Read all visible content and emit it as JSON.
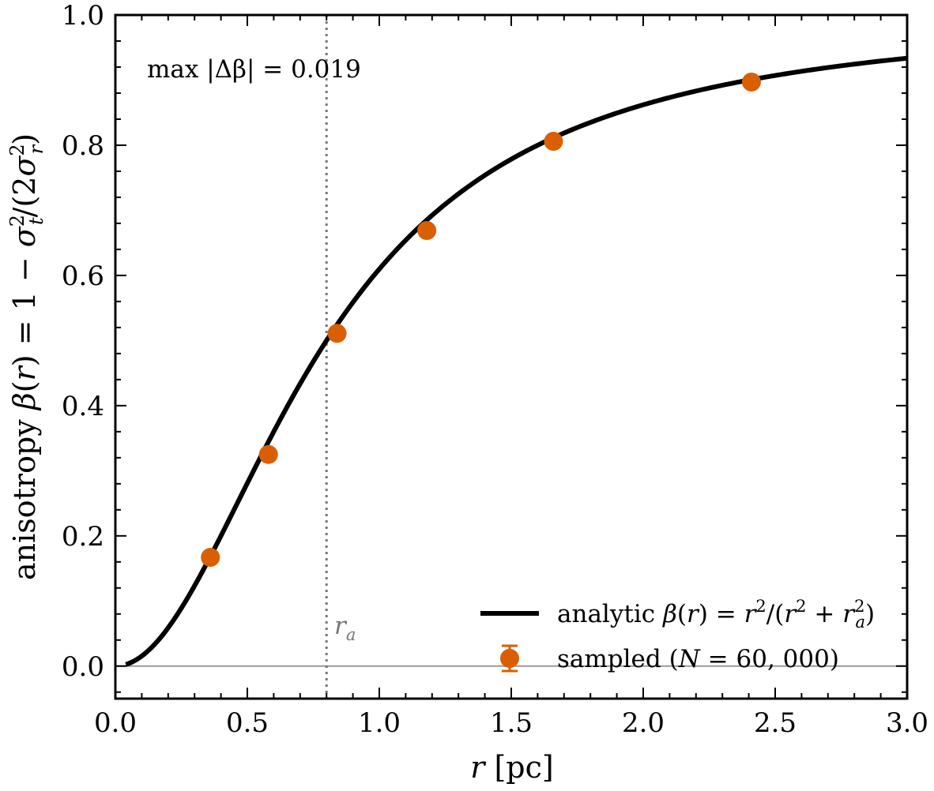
{
  "chart_data": {
    "type": "line",
    "xlabel": "r [pc]",
    "ylabel": "anisotropy β(r) = 1 − σ_t²/(2σ_r²)",
    "xlim": [
      0.0,
      3.0
    ],
    "ylim": [
      -0.05,
      1.0
    ],
    "xticks": [
      "0.0",
      "0.5",
      "1.0",
      "1.5",
      "2.0",
      "2.5",
      "3.0"
    ],
    "yticks": [
      "0.0",
      "0.2",
      "0.4",
      "0.6",
      "0.8",
      "1.0"
    ],
    "grid": false,
    "legend_position": "bottom-right",
    "annotation": "max |Δβ| = 0.019",
    "vline": {
      "x": 0.8,
      "label": "r_a"
    },
    "hline": {
      "y": 0.0
    },
    "series": [
      {
        "name": "analytic β(r) = r²/(r² + r_a²)",
        "kind": "line",
        "color": "#000000",
        "formula": "x^2/(x^2+0.8^2)",
        "r_a": 0.8,
        "x_range": [
          0.04,
          3.0
        ]
      },
      {
        "name": "sampled (N = 60,000)",
        "kind": "errorbar",
        "color": "#d95f02",
        "x": [
          0.36,
          0.58,
          0.84,
          1.18,
          1.66,
          2.41
        ],
        "y": [
          0.167,
          0.325,
          0.511,
          0.669,
          0.806,
          0.897
        ],
        "yerr": [
          0.006,
          0.006,
          0.006,
          0.006,
          0.006,
          0.006
        ]
      }
    ]
  }
}
